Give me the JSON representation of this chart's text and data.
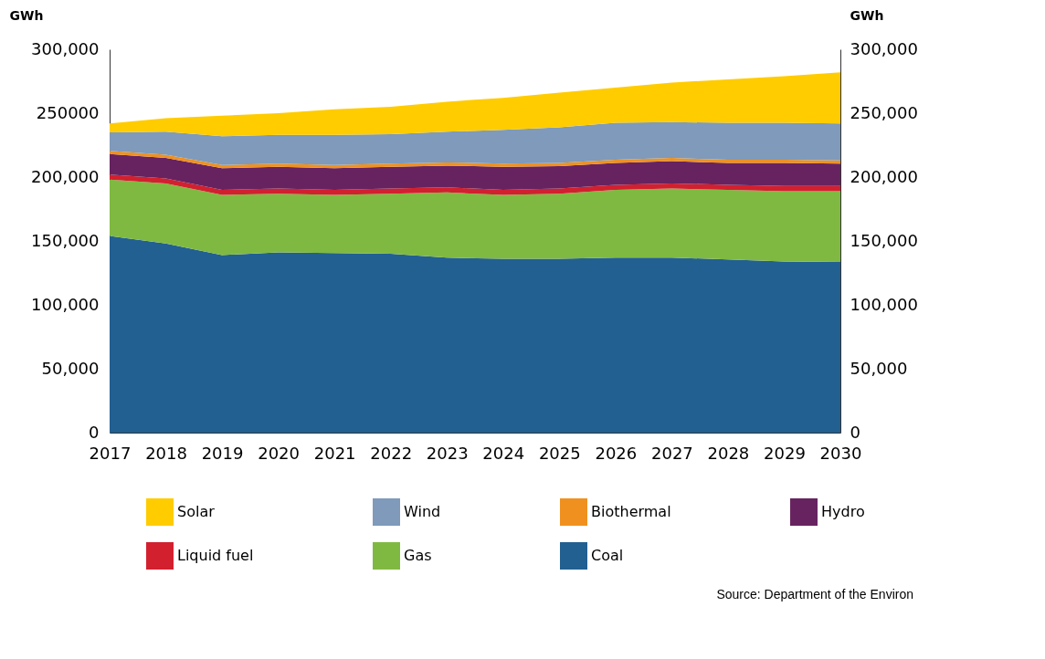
{
  "chart_data": {
    "type": "area",
    "stacked": true,
    "ylabel": "GWh",
    "y2label": "GWh",
    "x": [
      2017,
      2018,
      2019,
      2020,
      2021,
      2022,
      2023,
      2024,
      2025,
      2026,
      2027,
      2028,
      2029,
      2030
    ],
    "xlim": [
      2017,
      2030
    ],
    "xticks": [
      2017,
      2018,
      2019,
      2020,
      2021,
      2022,
      2023,
      2024,
      2025,
      2026,
      2027,
      2028,
      2029,
      2030
    ],
    "ylim": [
      0,
      300000
    ],
    "yticks": [
      {
        "value": 0,
        "label": "0"
      },
      {
        "value": 50000,
        "label": "50,000"
      },
      {
        "value": 100000,
        "label": "100,000"
      },
      {
        "value": 150000,
        "label": "150,000"
      },
      {
        "value": 200000,
        "label": "200,000"
      },
      {
        "value": 250000,
        "label": "250000"
      },
      {
        "value": 300000,
        "label": "300,000"
      }
    ],
    "y2lim": [
      0,
      300000
    ],
    "y2ticks": [
      {
        "value": 0,
        "label": "0"
      },
      {
        "value": 50000,
        "label": "50,000"
      },
      {
        "value": 100000,
        "label": "100,000"
      },
      {
        "value": 150000,
        "label": "150,000"
      },
      {
        "value": 200000,
        "label": "200,000"
      },
      {
        "value": 250000,
        "label": "250,000"
      },
      {
        "value": 300000,
        "label": "300,000"
      }
    ],
    "series": [
      {
        "name": "Coal",
        "color": "#226091",
        "values": [
          154000,
          148000,
          139000,
          141000,
          140500,
          140000,
          137000,
          136000,
          136000,
          137000,
          137000,
          135500,
          134000,
          133500
        ]
      },
      {
        "name": "Gas",
        "color": "#80b941",
        "values": [
          44000,
          47000,
          47000,
          46000,
          45500,
          47000,
          51000,
          50000,
          51000,
          53000,
          54000,
          54500,
          55000,
          55500
        ]
      },
      {
        "name": "Liquid fuel",
        "color": "#d2202f",
        "values": [
          4000,
          4000,
          4000,
          4000,
          4000,
          4000,
          4000,
          4000,
          4000,
          4000,
          4000,
          4000,
          4000,
          4000
        ]
      },
      {
        "name": "Hydro",
        "color": "#672360",
        "values": [
          16000,
          16000,
          17000,
          17000,
          17000,
          17000,
          17000,
          18000,
          17500,
          17000,
          17500,
          17000,
          18000,
          17500
        ]
      },
      {
        "name": "Biothermal",
        "color": "#f0911f",
        "values": [
          2500,
          2500,
          2500,
          2500,
          2500,
          2500,
          2500,
          2500,
          2500,
          2500,
          2500,
          2500,
          2500,
          2500
        ]
      },
      {
        "name": "Wind",
        "color": "#7f9aba",
        "values": [
          14500,
          18000,
          22500,
          22500,
          23500,
          23000,
          24000,
          26500,
          28000,
          29000,
          28000,
          29000,
          29000,
          29000
        ]
      },
      {
        "name": "Solar",
        "color": "#ffcc00",
        "values": [
          7000,
          10500,
          16000,
          17000,
          20000,
          21500,
          23500,
          25000,
          27000,
          27500,
          31000,
          34000,
          36500,
          40000
        ]
      }
    ],
    "legend": "bottom",
    "grid": false,
    "annotations": [
      "Source: Department of the Environ"
    ]
  }
}
